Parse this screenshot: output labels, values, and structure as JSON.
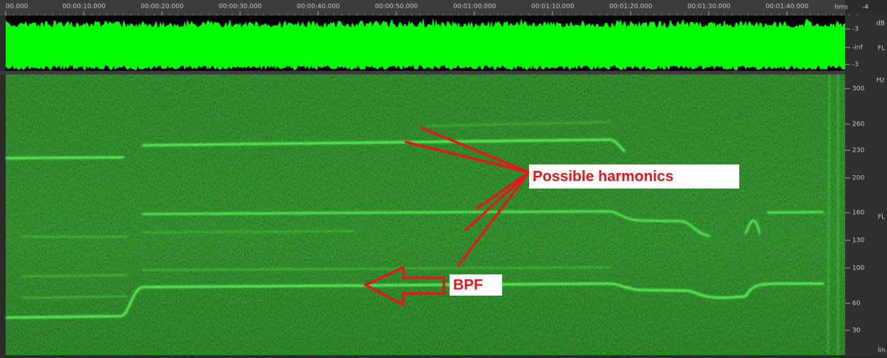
{
  "timeline": {
    "labels": [
      "00.000",
      "00:00:10.000",
      "00:00:20.000",
      "00:00:30.000",
      "00:00:40.000",
      "00:00:50.000",
      "00:01:00.000",
      "00:01:10.000",
      "00:01:20.000",
      "00:01:30.000",
      "00:01:40.000"
    ],
    "unit": "hms",
    "corner": "-4"
  },
  "waveform": {
    "unit": "dB",
    "labels": [
      "-3",
      "-inf",
      "-3"
    ],
    "channel": "FL"
  },
  "spectrogram": {
    "unit": "Hz",
    "labels": [
      "300",
      "260",
      "230",
      "200",
      "160",
      "130",
      "100",
      "60",
      "30"
    ],
    "channel": "FL",
    "scale": "lin"
  },
  "annotations": {
    "harmonics": "Possible harmonics",
    "bpf": "BPF"
  }
}
